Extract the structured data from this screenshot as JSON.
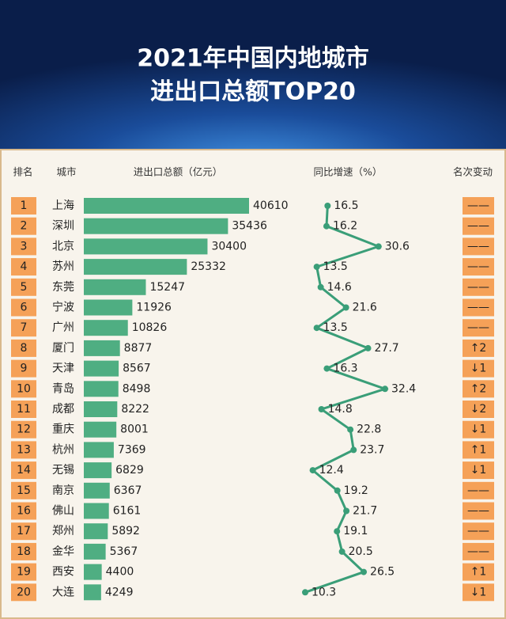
{
  "chart_data": {
    "type": "bar",
    "title": "2021年中国内地城市",
    "subtitle": "进出口总额TOP20",
    "headers": {
      "rank": "排名",
      "city": "城市",
      "value": "进出口总额（亿元）",
      "growth": "同比增速（%）",
      "change": "名次变动"
    },
    "ranks": [
      1,
      2,
      3,
      4,
      5,
      6,
      7,
      8,
      9,
      10,
      11,
      12,
      13,
      14,
      15,
      16,
      17,
      18,
      19,
      20
    ],
    "categories": [
      "上海",
      "深圳",
      "北京",
      "苏州",
      "东莞",
      "宁波",
      "广州",
      "厦门",
      "天津",
      "青岛",
      "成都",
      "重庆",
      "杭州",
      "无锡",
      "南京",
      "佛山",
      "郑州",
      "金华",
      "西安",
      "大连"
    ],
    "values": [
      40610,
      35436,
      30400,
      25332,
      15247,
      11926,
      10826,
      8877,
      8567,
      8498,
      8222,
      8001,
      7369,
      6829,
      6367,
      6161,
      5892,
      5367,
      4400,
      4249
    ],
    "color": "#4fae82",
    "growth": [
      16.5,
      16.2,
      30.6,
      13.5,
      14.6,
      21.6,
      13.5,
      27.7,
      16.3,
      32.4,
      14.8,
      22.8,
      23.7,
      12.4,
      19.2,
      21.7,
      19.1,
      20.5,
      26.5,
      10.3
    ],
    "growth_color": "#3a9e78",
    "rank_change": [
      "——",
      "——",
      "——",
      "——",
      "——",
      "——",
      "——",
      "↑2",
      "↓1",
      "↑2",
      "↓2",
      "↓1",
      "↑1",
      "↓1",
      "——",
      "——",
      "——",
      "——",
      "↑1",
      "↓1"
    ]
  }
}
